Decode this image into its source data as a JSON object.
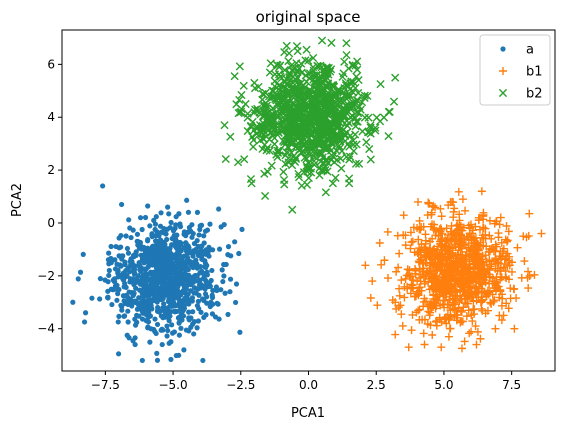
{
  "chart_data": {
    "type": "scatter",
    "title": "original space",
    "xlabel": "PCA1",
    "ylabel": "PCA2",
    "xlim": [
      -9.1,
      9.1
    ],
    "ylim": [
      -5.6,
      7.3
    ],
    "xticks": [
      -7.5,
      -5.0,
      -2.5,
      0.0,
      2.5,
      5.0,
      7.5
    ],
    "xtick_labels": [
      "−7.5",
      "−5.0",
      "−2.5",
      "0.0",
      "2.5",
      "5.0",
      "7.5"
    ],
    "yticks": [
      -4,
      -2,
      0,
      2,
      4,
      6
    ],
    "ytick_labels": [
      "−4",
      "−2",
      "0",
      "2",
      "4",
      "6"
    ],
    "grid": false,
    "legend": {
      "placement": "top-right"
    },
    "series": [
      {
        "name": "a",
        "marker": "point",
        "color": "#1f77b4",
        "cluster_center": [
          -5.3,
          -2.0
        ],
        "cluster_spread": [
          1.0,
          1.0
        ],
        "n_points": 1000,
        "x": [
          -8.7,
          -7.6,
          -6.9,
          -6.4,
          -5.4,
          -4.6,
          -3.9,
          -3.6,
          -2.9,
          -5.2,
          -6.2,
          -4.1
        ],
        "y": [
          -3.0,
          1.4,
          0.7,
          -4.6,
          -4.6,
          -4.8,
          -5.2,
          -3.0,
          -2.6,
          0.6,
          0.2,
          0.4
        ]
      },
      {
        "name": "b1",
        "marker": "plus",
        "color": "#ff7f0e",
        "cluster_center": [
          5.5,
          -1.8
        ],
        "cluster_spread": [
          1.0,
          1.0
        ],
        "n_points": 1000,
        "x": [
          2.1,
          3.2,
          3.7,
          4.9,
          6.2,
          6.9,
          7.6,
          8.6,
          6.4,
          5.3,
          4.4,
          5.7
        ],
        "y": [
          -1.6,
          -3.0,
          -4.7,
          -4.7,
          -4.6,
          -4.0,
          -4.0,
          -0.4,
          1.2,
          0.8,
          0.3,
          0.9
        ]
      },
      {
        "name": "b2",
        "marker": "x",
        "color": "#2ca02c",
        "cluster_center": [
          0.0,
          4.0
        ],
        "cluster_spread": [
          1.0,
          1.0
        ],
        "n_points": 1000,
        "x": [
          -3.1,
          -2.6,
          -2.1,
          -1.7,
          -0.6,
          0.9,
          1.5,
          2.3,
          3.0,
          1.8,
          1.4,
          0.5,
          -0.4,
          -2.0
        ],
        "y": [
          3.7,
          2.3,
          1.5,
          2.8,
          0.5,
          1.5,
          1.5,
          2.4,
          4.2,
          5.8,
          6.8,
          6.9,
          6.5,
          5.3
        ]
      }
    ]
  }
}
